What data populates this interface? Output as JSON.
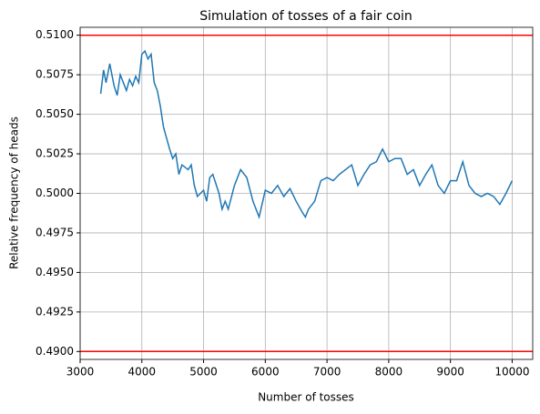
{
  "chart_data": {
    "type": "line",
    "title": "Simulation of tosses of a fair coin",
    "xlabel": "Number of tosses",
    "ylabel": "Relative frequency of heads",
    "grid": true,
    "xlim": [
      3000,
      10333
    ],
    "ylim": [
      0.4895,
      0.5105
    ],
    "xticks": [
      3000,
      4000,
      5000,
      6000,
      7000,
      8000,
      9000,
      10000
    ],
    "yticks": [
      {
        "value": 0.49,
        "label": "0.4900"
      },
      {
        "value": 0.4925,
        "label": "0.4925"
      },
      {
        "value": 0.495,
        "label": "0.4950"
      },
      {
        "value": 0.4975,
        "label": "0.4975"
      },
      {
        "value": 0.5,
        "label": "0.5000"
      },
      {
        "value": 0.5025,
        "label": "0.5025"
      },
      {
        "value": 0.505,
        "label": "0.5050"
      },
      {
        "value": 0.5075,
        "label": "0.5075"
      },
      {
        "value": 0.51,
        "label": "0.5100"
      }
    ],
    "reference_lines": {
      "color": "#ff0000",
      "values": [
        0.51,
        0.49
      ]
    },
    "x": [
      3333,
      3380,
      3420,
      3480,
      3550,
      3600,
      3650,
      3700,
      3750,
      3800,
      3850,
      3900,
      3950,
      4000,
      4050,
      4100,
      4150,
      4200,
      4250,
      4300,
      4350,
      4400,
      4450,
      4500,
      4550,
      4600,
      4650,
      4750,
      4800,
      4850,
      4900,
      5000,
      5050,
      5100,
      5150,
      5250,
      5300,
      5350,
      5400,
      5500,
      5600,
      5700,
      5800,
      5900,
      6000,
      6100,
      6200,
      6300,
      6400,
      6500,
      6600,
      6650,
      6700,
      6800,
      6900,
      7000,
      7100,
      7200,
      7300,
      7400,
      7500,
      7600,
      7700,
      7800,
      7900,
      8000,
      8100,
      8200,
      8300,
      8400,
      8500,
      8600,
      8700,
      8800,
      8900,
      9000,
      9100,
      9200,
      9300,
      9400,
      9500,
      9600,
      9700,
      9800,
      9900,
      10000
    ],
    "series": [
      {
        "color": "#1f77b4",
        "values": [
          0.5063,
          0.5078,
          0.507,
          0.5082,
          0.5068,
          0.5062,
          0.5075,
          0.507,
          0.5065,
          0.5072,
          0.5068,
          0.5074,
          0.507,
          0.5088,
          0.509,
          0.5085,
          0.5088,
          0.507,
          0.5065,
          0.5055,
          0.5042,
          0.5035,
          0.5028,
          0.5022,
          0.5025,
          0.5012,
          0.5018,
          0.5015,
          0.5018,
          0.5005,
          0.4998,
          0.5002,
          0.4995,
          0.501,
          0.5012,
          0.5,
          0.499,
          0.4995,
          0.499,
          0.5005,
          0.5015,
          0.501,
          0.4995,
          0.4985,
          0.5002,
          0.5,
          0.5005,
          0.4998,
          0.5003,
          0.4995,
          0.4988,
          0.4985,
          0.499,
          0.4995,
          0.5008,
          0.501,
          0.5008,
          0.5012,
          0.5015,
          0.5018,
          0.5005,
          0.5012,
          0.5018,
          0.502,
          0.5028,
          0.502,
          0.5022,
          0.5022,
          0.5012,
          0.5015,
          0.5005,
          0.5012,
          0.5018,
          0.5005,
          0.5,
          0.5008,
          0.5008,
          0.502,
          0.5005,
          0.5,
          0.4998,
          0.5,
          0.4998,
          0.4993,
          0.5,
          0.5008
        ]
      }
    ]
  }
}
